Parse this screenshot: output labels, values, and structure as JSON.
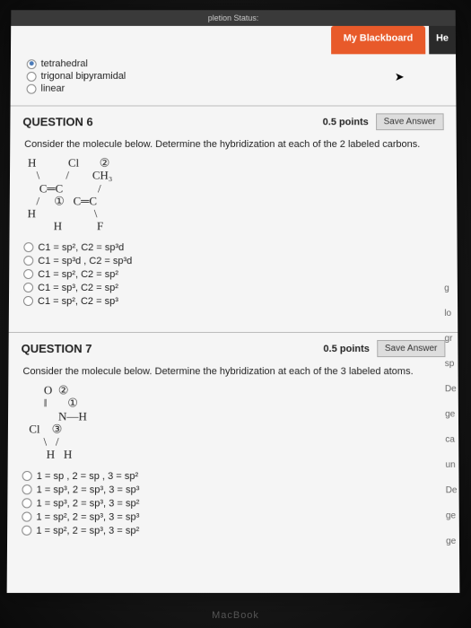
{
  "topbar": {
    "text": "pletion Status:"
  },
  "header": {
    "blackboard": "My Blackboard",
    "right_char": "He"
  },
  "prev_question": {
    "options": [
      {
        "label": "tetrahedral",
        "selected": true
      },
      {
        "label": "trigonal bipyramidal",
        "selected": false
      },
      {
        "label": "linear",
        "selected": false
      }
    ]
  },
  "q6": {
    "title": "QUESTION 6",
    "points": "0.5 points",
    "save": "Save Answer",
    "prompt": "Consider the molecule below. Determine the hybridization at each of the 2 labeled carbons.",
    "molecule": "H           Cl       ②\n   \\         /        CH₃\n    C═C            /\n   /     ①   C═C\nH                    \\\n         H            F",
    "options": [
      "C1 = sp², C2 = sp³d",
      "C1 = sp³d , C2 = sp³d",
      "C1 = sp², C2 = sp²",
      "C1 = sp³, C2 = sp²",
      "C1 = sp², C2 = sp³"
    ]
  },
  "q7": {
    "title": "QUESTION 7",
    "points": "0.5 points",
    "save": "Save Answer",
    "prompt": "Consider the molecule below. Determine the hybridization at each of the 3 labeled atoms.",
    "molecule": "      O  ②\n      ‖       ①\n           N—H\n Cl    ③\n      \\   /\n       H   H",
    "options": [
      "1 = sp , 2 = sp , 3 = sp²",
      "1 = sp³, 2 = sp³, 3 = sp³",
      "1 = sp³, 2 = sp³, 3 = sp²",
      "1 = sp², 2 = sp³, 3 = sp³",
      "1 = sp², 2 = sp³, 3 = sp²"
    ]
  },
  "side": [
    "g",
    "lo",
    "gr",
    "sp",
    "",
    "De",
    "ge",
    "ca",
    "un",
    "",
    "De",
    "ge",
    "ge"
  ],
  "footer": "MacBook"
}
